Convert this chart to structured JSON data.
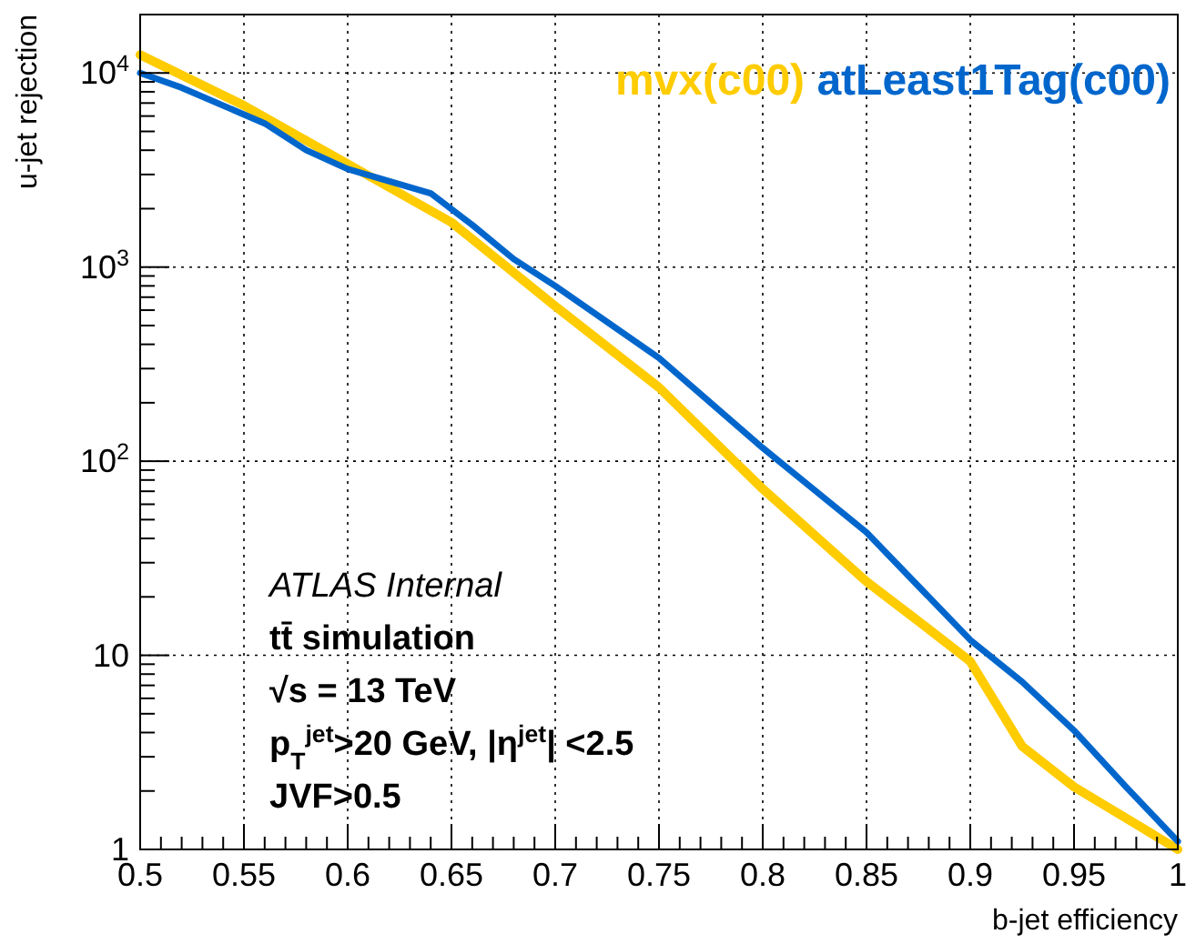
{
  "chart_data": {
    "type": "line",
    "xlabel": "b-jet efficiency",
    "ylabel": "u-jet rejection",
    "log": "y",
    "grid": true,
    "legend": "top right",
    "marker": "none",
    "line_style": "solid",
    "xlim": [
      0.5,
      1
    ],
    "ylim": [
      1,
      20000
    ],
    "xticks": [
      0.5,
      {
        "value": 0.51,
        "label": null
      },
      {
        "value": 0.52,
        "label": null
      },
      {
        "value": 0.53,
        "label": null
      },
      {
        "value": 0.54,
        "label": null
      },
      0.55,
      {
        "value": 0.56,
        "label": null
      },
      {
        "value": 0.57,
        "label": null
      },
      {
        "value": 0.58,
        "label": null
      },
      {
        "value": 0.59,
        "label": null
      },
      0.6,
      {
        "value": 0.61,
        "label": null
      },
      {
        "value": 0.62,
        "label": null
      },
      {
        "value": 0.63,
        "label": null
      },
      {
        "value": 0.64,
        "label": null
      },
      0.65,
      {
        "value": 0.66,
        "label": null
      },
      {
        "value": 0.67,
        "label": null
      },
      {
        "value": 0.68,
        "label": null
      },
      {
        "value": 0.69,
        "label": null
      },
      0.7,
      {
        "value": 0.71,
        "label": null
      },
      {
        "value": 0.72,
        "label": null
      },
      {
        "value": 0.73,
        "label": null
      },
      {
        "value": 0.74,
        "label": null
      },
      0.75,
      {
        "value": 0.76,
        "label": null
      },
      {
        "value": 0.77,
        "label": null
      },
      {
        "value": 0.78,
        "label": null
      },
      {
        "value": 0.79,
        "label": null
      },
      0.8,
      {
        "value": 0.81,
        "label": null
      },
      {
        "value": 0.82,
        "label": null
      },
      {
        "value": 0.83,
        "label": null
      },
      {
        "value": 0.84,
        "label": null
      },
      0.85,
      {
        "value": 0.86,
        "label": null
      },
      {
        "value": 0.87,
        "label": null
      },
      {
        "value": 0.88,
        "label": null
      },
      {
        "value": 0.89,
        "label": null
      },
      0.9,
      {
        "value": 0.91,
        "label": null
      },
      {
        "value": 0.92,
        "label": null
      },
      {
        "value": 0.93,
        "label": null
      },
      {
        "value": 0.94,
        "label": null
      },
      0.95,
      {
        "value": 0.96,
        "label": null
      },
      {
        "value": 0.97,
        "label": null
      },
      {
        "value": 0.98,
        "label": null
      },
      {
        "value": 0.99,
        "label": null
      },
      1
    ],
    "yticks": [
      1,
      {
        "value": 2,
        "label": null
      },
      {
        "value": 3,
        "label": null
      },
      {
        "value": 4,
        "label": null
      },
      {
        "value": 5,
        "label": null
      },
      {
        "value": 6,
        "label": null
      },
      {
        "value": 7,
        "label": null
      },
      {
        "value": 8,
        "label": null
      },
      {
        "value": 9,
        "label": null
      },
      10,
      {
        "value": 20,
        "label": null
      },
      {
        "value": 30,
        "label": null
      },
      {
        "value": 40,
        "label": null
      },
      {
        "value": 50,
        "label": null
      },
      {
        "value": 60,
        "label": null
      },
      {
        "value": 70,
        "label": null
      },
      {
        "value": 80,
        "label": null
      },
      {
        "value": 90,
        "label": null
      },
      {
        "value": 100,
        "label": "10$^{2}$"
      },
      {
        "value": 200,
        "label": null
      },
      {
        "value": 300,
        "label": null
      },
      {
        "value": 400,
        "label": null
      },
      {
        "value": 500,
        "label": null
      },
      {
        "value": 600,
        "label": null
      },
      {
        "value": 700,
        "label": null
      },
      {
        "value": 800,
        "label": null
      },
      {
        "value": 900,
        "label": null
      },
      {
        "value": 1000,
        "label": "10$^{3}$"
      },
      {
        "value": 2000,
        "label": null
      },
      {
        "value": 3000,
        "label": null
      },
      {
        "value": 4000,
        "label": null
      },
      {
        "value": 5000,
        "label": null
      },
      {
        "value": 6000,
        "label": null
      },
      {
        "value": 7000,
        "label": null
      },
      {
        "value": 8000,
        "label": null
      },
      {
        "value": 9000,
        "label": null
      },
      {
        "value": 10000,
        "label": "10$^{4}$"
      }
    ],
    "series": [
      {
        "name": "mvx(c00)",
        "color": "#ffcc00",
        "x": [
          0.5,
          0.55,
          0.6,
          0.65,
          0.7,
          0.75,
          0.8,
          0.85,
          0.875,
          0.9,
          0.925,
          0.95,
          0.975,
          1
        ],
        "values": [
          12400,
          6800,
          3400,
          1700,
          630,
          240,
          72,
          24,
          15,
          9.3,
          3.4,
          2.1,
          1.45,
          1
        ]
      },
      {
        "name": "atLeast1Tag(c00)",
        "color": "#0066cc",
        "x": [
          0.5,
          0.52,
          0.56,
          0.58,
          0.6,
          0.64,
          0.66,
          0.68,
          0.7,
          0.75,
          0.8,
          0.85,
          0.9,
          0.925,
          0.95,
          0.975,
          1
        ],
        "values": [
          10000,
          8400,
          5500,
          4000,
          3200,
          2400,
          1650,
          1100,
          800,
          340,
          117,
          43,
          12,
          7.3,
          4.1,
          2.1,
          1.1
        ]
      }
    ],
    "annotations": [
      "ATLAS Internal",
      "tt̄ simulation",
      "√s = 13 TeV",
      "p$_{T}$$^{jet}$>20 GeV, |η$^{jet}$| <2.5",
      "JVF>0.5"
    ]
  }
}
